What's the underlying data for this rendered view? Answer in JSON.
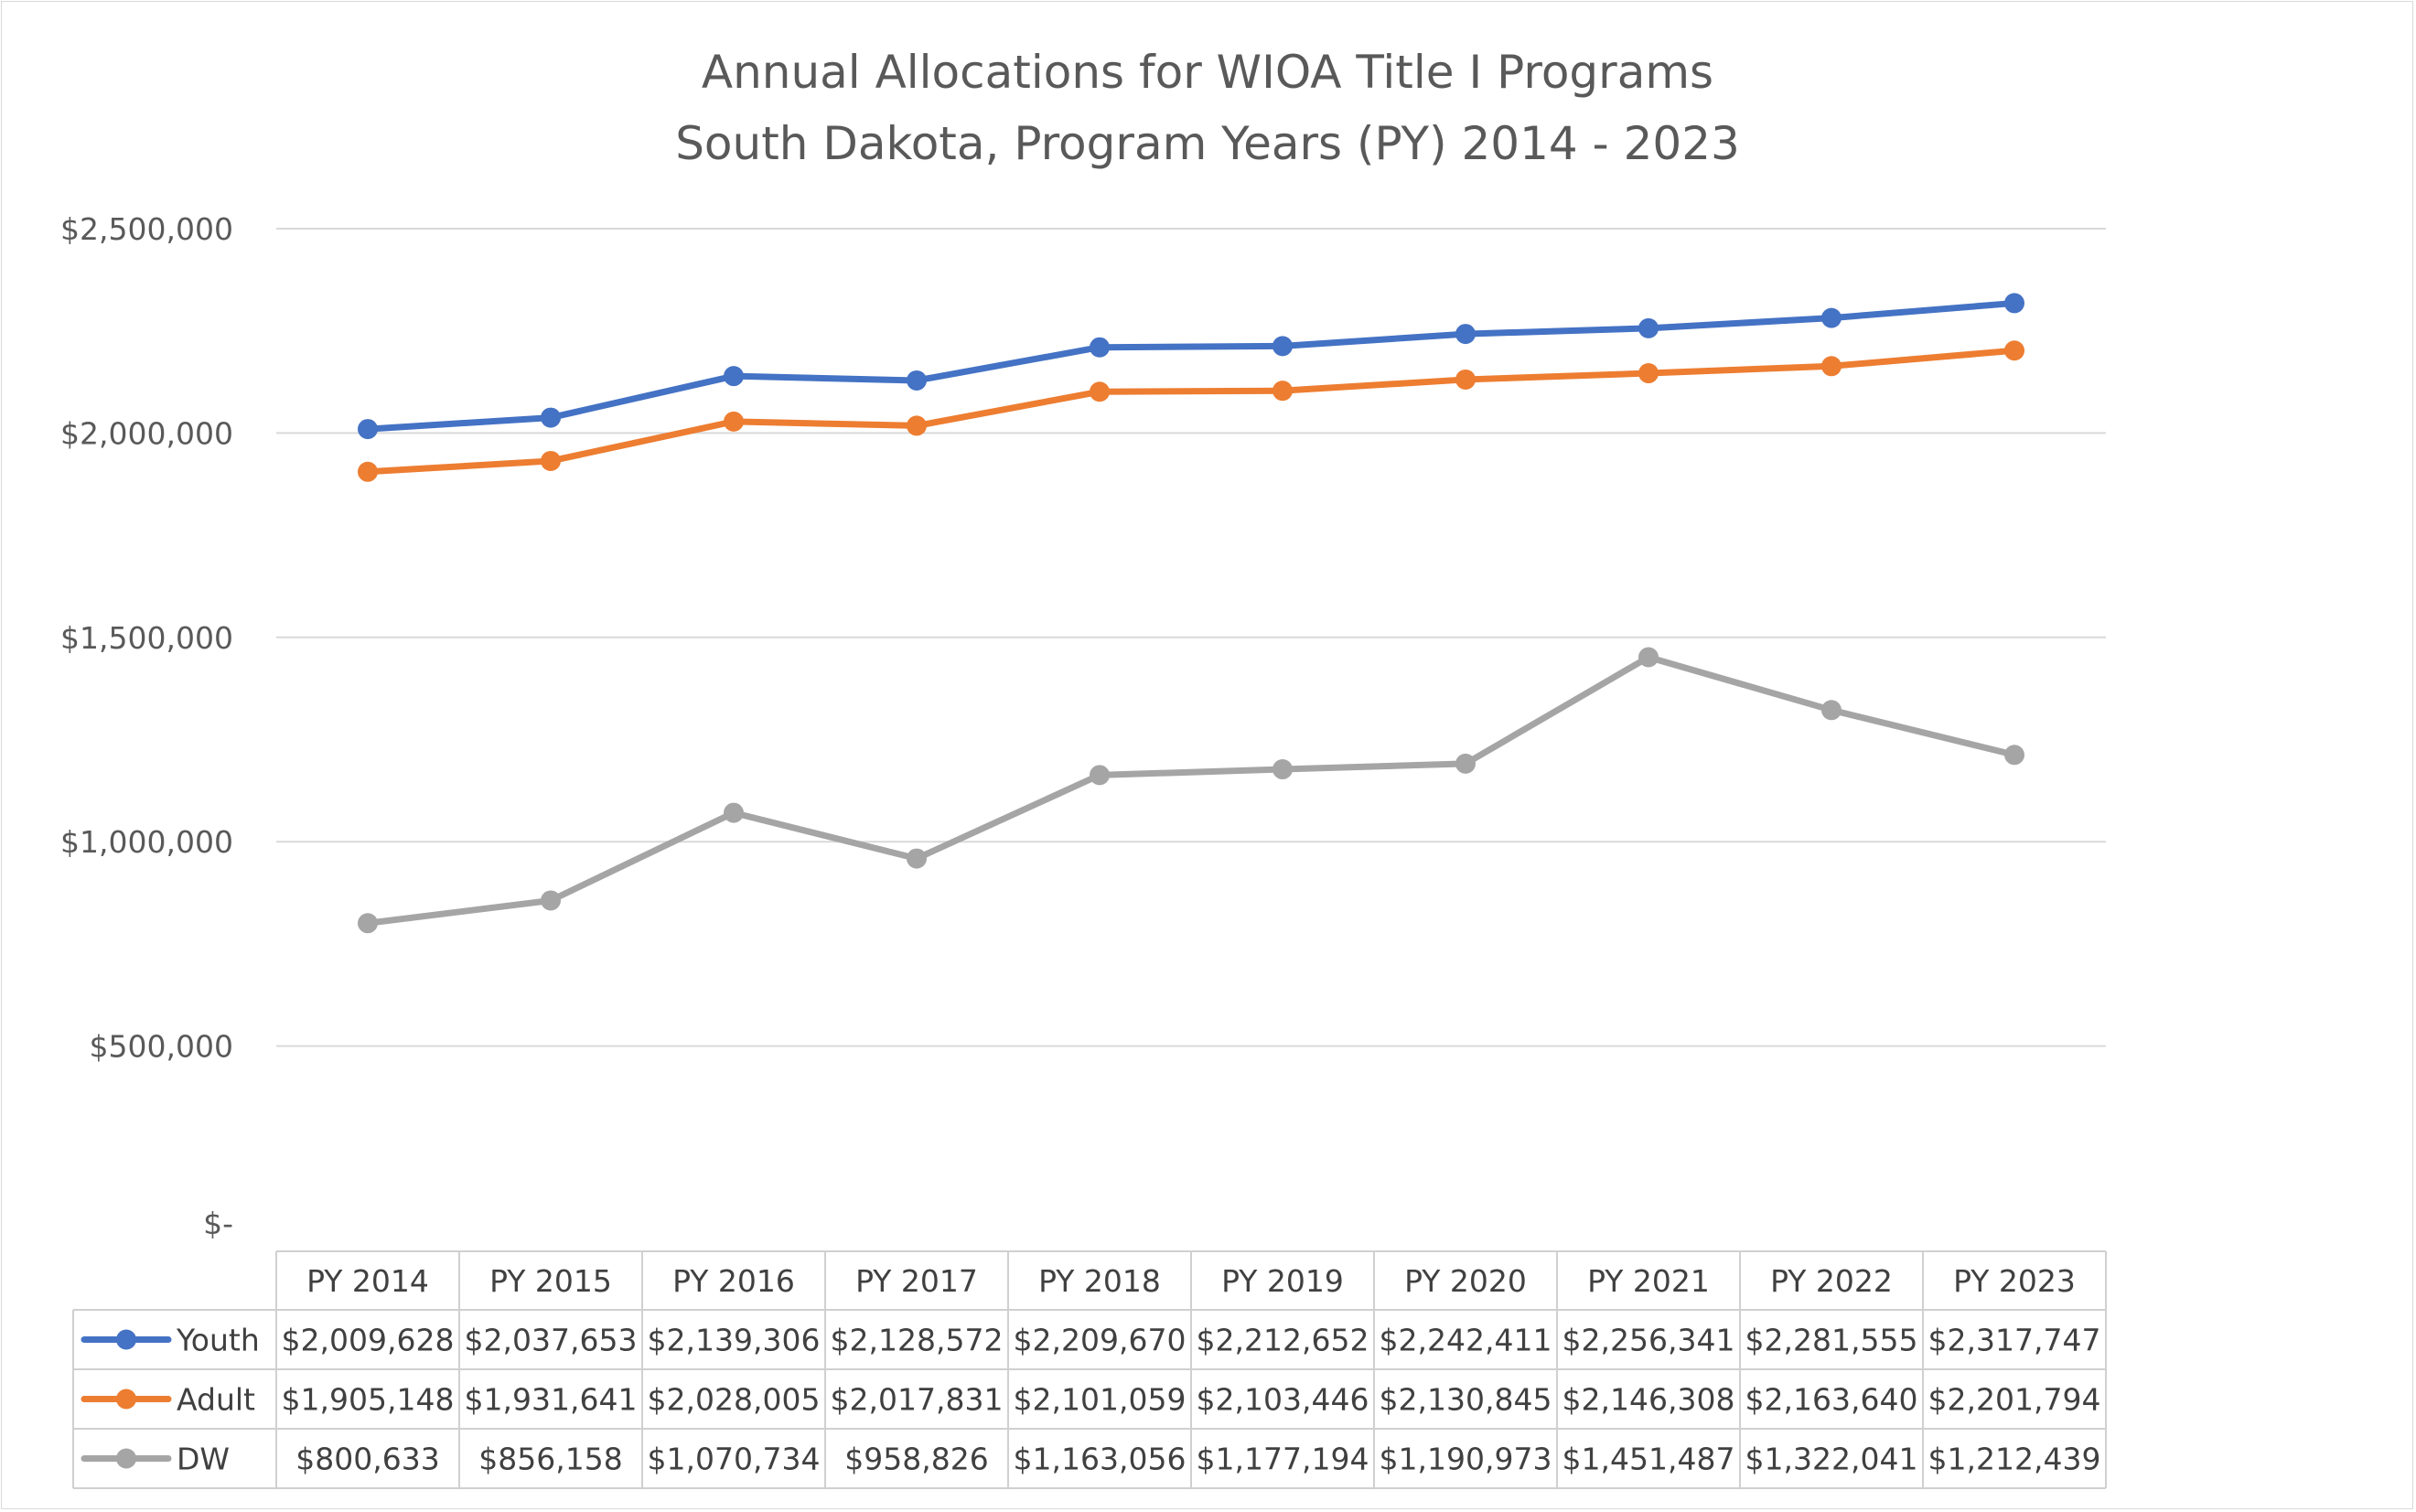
{
  "chart_data": {
    "type": "line",
    "title": "Annual Allocations for WIOA Title I Programs",
    "subtitle": "South Dakota, Program Years (PY) 2014 - 2023",
    "categories": [
      "PY 2014",
      "PY 2015",
      "PY 2016",
      "PY 2017",
      "PY 2018",
      "PY 2019",
      "PY 2020",
      "PY 2021",
      "PY 2022",
      "PY 2023"
    ],
    "ylim": [
      0,
      2500000
    ],
    "yticks": [
      0,
      500000,
      1000000,
      1500000,
      2000000,
      2500000
    ],
    "ytick_labels": [
      "$-",
      "$500,000",
      "$1,000,000",
      "$1,500,000",
      "$2,000,000",
      "$2,500,000"
    ],
    "grid": true,
    "legend": "data table below chart",
    "series": [
      {
        "name": "Youth",
        "color": "#4472c4",
        "values": [
          2009628,
          2037653,
          2139306,
          2128572,
          2209670,
          2212652,
          2242411,
          2256341,
          2281555,
          2317747
        ],
        "labels": [
          "$2,009,628",
          "$2,037,653",
          "$2,139,306",
          "$2,128,572",
          "$2,209,670",
          "$2,212,652",
          "$2,242,411",
          "$2,256,341",
          "$2,281,555",
          "$2,317,747"
        ]
      },
      {
        "name": "Adult",
        "color": "#ed7d31",
        "values": [
          1905148,
          1931641,
          2028005,
          2017831,
          2101059,
          2103446,
          2130845,
          2146308,
          2163640,
          2201794
        ],
        "labels": [
          "$1,905,148",
          "$1,931,641",
          "$2,028,005",
          "$2,017,831",
          "$2,101,059",
          "$2,103,446",
          "$2,130,845",
          "$2,146,308",
          "$2,163,640",
          "$2,201,794"
        ]
      },
      {
        "name": "DW",
        "color": "#a5a5a5",
        "values": [
          800633,
          856158,
          1070734,
          958826,
          1163056,
          1177194,
          1190973,
          1451487,
          1322041,
          1212439
        ],
        "labels": [
          "$800,633",
          "$856,158",
          "$1,070,734",
          "$958,826",
          "$1,163,056",
          "$1,177,194",
          "$1,190,973",
          "$1,451,487",
          "$1,322,041",
          "$1,212,439"
        ]
      }
    ]
  }
}
